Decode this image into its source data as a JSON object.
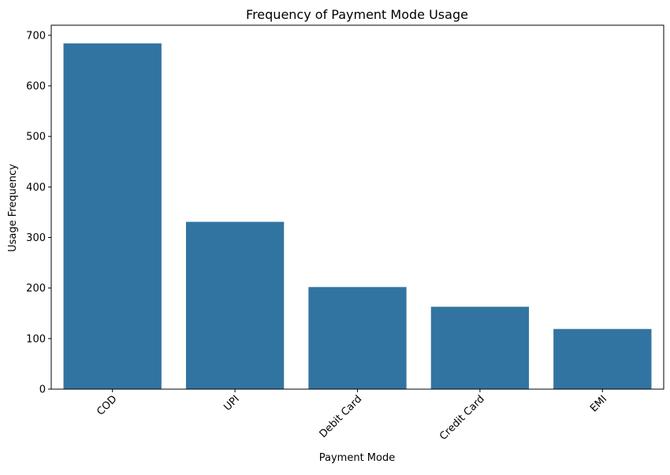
{
  "chart_data": {
    "type": "bar",
    "title": "Frequency of Payment Mode Usage",
    "xlabel": "Payment Mode",
    "ylabel": "Usage Frequency",
    "categories": [
      "COD",
      "UPI",
      "Debit Card",
      "Credit Card",
      "EMI"
    ],
    "values": [
      684,
      331,
      202,
      163,
      119
    ],
    "ylim": [
      0,
      720
    ],
    "yticks": [
      0,
      100,
      200,
      300,
      400,
      500,
      600,
      700
    ],
    "bar_color": "#3274a1",
    "grid": false,
    "legend": "none"
  }
}
